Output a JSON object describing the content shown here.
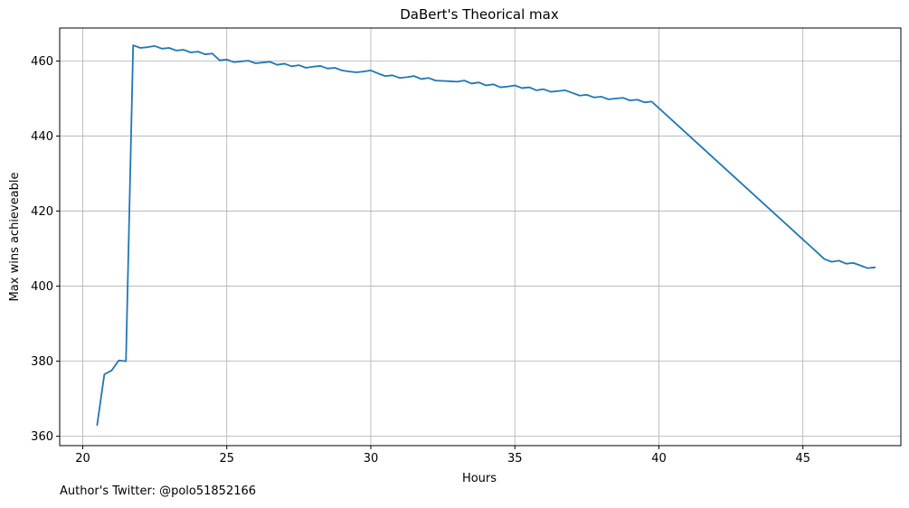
{
  "footnote": "Author's Twitter: @polo51852166",
  "chart_data": {
    "type": "line",
    "title": "DaBert's Theorical max",
    "xlabel": "Hours",
    "ylabel": "Max wins achieveable",
    "xlim": [
      19.2,
      48.4
    ],
    "ylim": [
      357.5,
      468.8
    ],
    "xticks": [
      20,
      25,
      30,
      35,
      40,
      45
    ],
    "yticks": [
      360,
      380,
      400,
      420,
      440,
      460
    ],
    "grid": true,
    "line_color": "#1f77b4",
    "series": [
      {
        "x": [
          20.5,
          20.75,
          21.0,
          21.25,
          21.5,
          21.75,
          22.0,
          22.25,
          22.5,
          22.75,
          23.0,
          23.25,
          23.5,
          23.75,
          24.0,
          24.25,
          24.5,
          24.75,
          25.0,
          25.25,
          25.5,
          25.75,
          26.0,
          26.25,
          26.5,
          26.75,
          27.0,
          27.25,
          27.5,
          27.75,
          28.0,
          28.25,
          28.5,
          28.75,
          29.0,
          29.25,
          29.5,
          29.75,
          30.0,
          30.25,
          30.5,
          30.75,
          31.0,
          31.25,
          31.5,
          31.75,
          32.0,
          32.25,
          32.5,
          32.75,
          33.0,
          33.25,
          33.5,
          33.75,
          34.0,
          34.25,
          34.5,
          34.75,
          35.0,
          35.25,
          35.5,
          35.75,
          36.0,
          36.25,
          36.5,
          36.75,
          37.0,
          37.25,
          37.5,
          37.75,
          38.0,
          38.25,
          38.5,
          38.75,
          39.0,
          39.25,
          39.5,
          39.75,
          45.75,
          46.0,
          46.25,
          46.5,
          46.75,
          47.0,
          47.25,
          47.5
        ],
        "y": [
          363.0,
          376.5,
          377.5,
          380.2,
          380.0,
          464.2,
          463.5,
          463.7,
          464.0,
          463.3,
          463.5,
          462.8,
          463.0,
          462.3,
          462.5,
          461.8,
          462.0,
          460.2,
          460.4,
          459.7,
          459.9,
          460.1,
          459.4,
          459.6,
          459.8,
          459.0,
          459.3,
          458.6,
          458.9,
          458.2,
          458.5,
          458.7,
          458.0,
          458.2,
          457.5,
          457.2,
          457.0,
          457.2,
          457.5,
          456.7,
          456.0,
          456.2,
          455.5,
          455.7,
          456.0,
          455.2,
          455.5,
          454.8,
          454.7,
          454.6,
          454.5,
          454.8,
          454.0,
          454.3,
          453.5,
          453.8,
          453.0,
          453.2,
          453.5,
          452.8,
          453.0,
          452.2,
          452.5,
          451.8,
          452.0,
          452.2,
          451.5,
          450.8,
          451.0,
          450.3,
          450.5,
          449.8,
          450.0,
          450.2,
          449.5,
          449.7,
          449.0,
          449.2,
          407.2,
          406.5,
          406.8,
          406.0,
          406.2,
          405.5,
          404.8,
          405.0
        ]
      }
    ]
  }
}
